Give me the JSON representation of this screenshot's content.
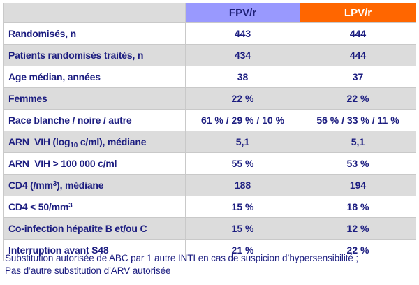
{
  "colors": {
    "fpv-header-bg": "#9999fe",
    "fpv-header-text": "#1f2077",
    "lpv-header-bg": "#ff6600",
    "lpv-header-text": "#ffffff",
    "row-alt-bg": "#dcdcdc",
    "grid-border": "#c9c9c9",
    "text-navy": "#1c1d80"
  },
  "table": {
    "corner_label": "",
    "columns": [
      {
        "label": "FPV/r"
      },
      {
        "label": "LPV/r"
      }
    ],
    "rows": [
      {
        "label": "Randomisés, n",
        "fpv": "443",
        "lpv": "444"
      },
      {
        "label": "Patients randomisés traités, n",
        "fpv": "434",
        "lpv": "444"
      },
      {
        "label": "Age médian, années",
        "fpv": "38",
        "lpv": "37"
      },
      {
        "label": "Femmes",
        "fpv": "22 %",
        "lpv": "22 %"
      },
      {
        "label": "Race blanche / noire / autre",
        "fpv": "61 % / 29 % / 10 %",
        "lpv": "56 % / 33 % / 11 %"
      },
      {
        "label": "ARN&nbsp; VIH (log<sub>10</sub> c/ml), médiane",
        "fpv": "5,1",
        "lpv": "5,1"
      },
      {
        "label": "ARN&nbsp; VIH <u>></u> 100 000 c/ml",
        "fpv": "55 %",
        "lpv": "53 %"
      },
      {
        "label": "CD4 (/mm<sup>3</sup>), médiane",
        "fpv": "188",
        "lpv": "194"
      },
      {
        "label": "CD4 &lt; 50/mm<sup>3</sup>",
        "fpv": "15 %",
        "lpv": "18 %"
      },
      {
        "label": "Co-infection hépatite B et/ou C",
        "fpv": "15 %",
        "lpv": "12 %"
      },
      {
        "label": "Interruption avant S48",
        "fpv": "21 %",
        "lpv": "22 %"
      }
    ]
  },
  "footer": {
    "line1": "Substitution autorisée de ABC par 1 autre INTI en cas de suspicion d’hypersensibilité ;",
    "line2": "Pas d’autre substitution d’ARV autorisée"
  }
}
